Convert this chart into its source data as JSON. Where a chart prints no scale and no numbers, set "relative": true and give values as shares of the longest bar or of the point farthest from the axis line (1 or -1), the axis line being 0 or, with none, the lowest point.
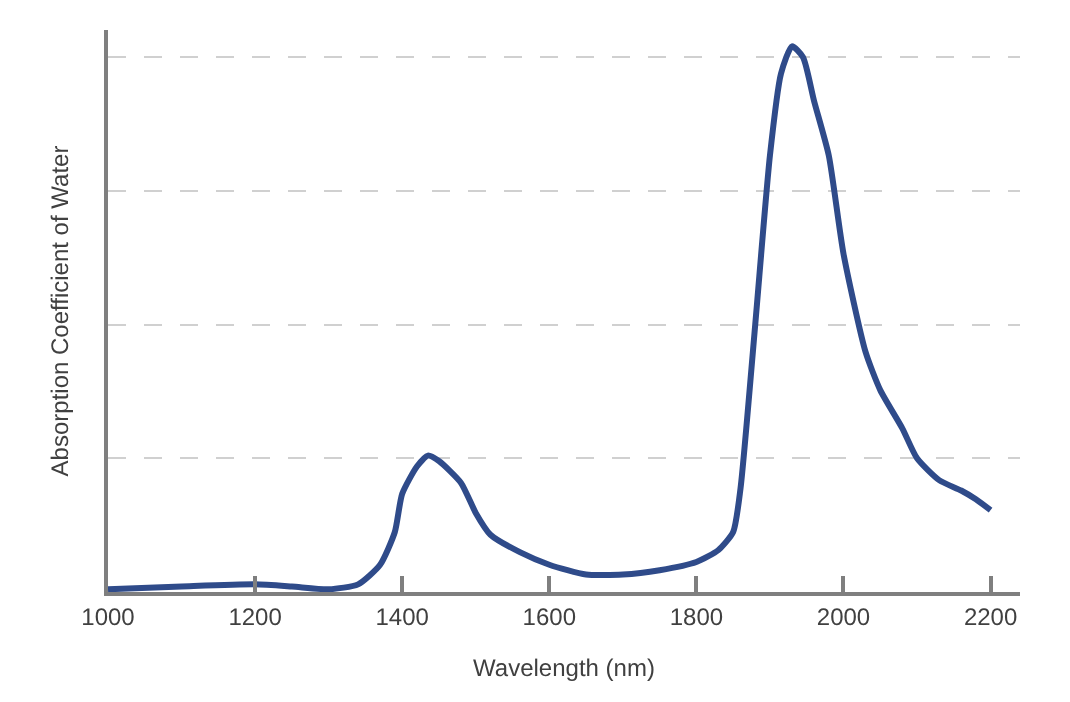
{
  "chart_data": {
    "type": "line",
    "relative": true,
    "xlabel": "Wavelength (nm)",
    "ylabel": "Absorption Coefficient of Water",
    "xlim": [
      1000,
      2240
    ],
    "xticks": [
      1000,
      1200,
      1400,
      1600,
      1800,
      2000,
      2200
    ],
    "grid": "y",
    "marker": "none",
    "line_style": "solid",
    "x": [
      1000,
      1100,
      1200,
      1250,
      1300,
      1340,
      1370,
      1390,
      1400,
      1420,
      1435,
      1450,
      1480,
      1500,
      1520,
      1560,
      1600,
      1650,
      1700,
      1750,
      1800,
      1830,
      1850,
      1860,
      1880,
      1900,
      1915,
      1930,
      1945,
      1960,
      1980,
      2000,
      2030,
      2050,
      2080,
      2100,
      2130,
      2160,
      2180,
      2200
    ],
    "series": [
      {
        "color": "#2f4b8a",
        "values": [
          0.005,
          0.01,
          0.014,
          0.01,
          0.005,
          0.014,
          0.05,
          0.11,
          0.18,
          0.23,
          0.25,
          0.24,
          0.2,
          0.145,
          0.105,
          0.073,
          0.05,
          0.032,
          0.032,
          0.04,
          0.055,
          0.077,
          0.11,
          0.19,
          0.49,
          0.8,
          0.95,
          1.0,
          0.98,
          0.9,
          0.8,
          0.62,
          0.44,
          0.37,
          0.3,
          0.245,
          0.205,
          0.186,
          0.17,
          0.15
        ]
      }
    ]
  }
}
